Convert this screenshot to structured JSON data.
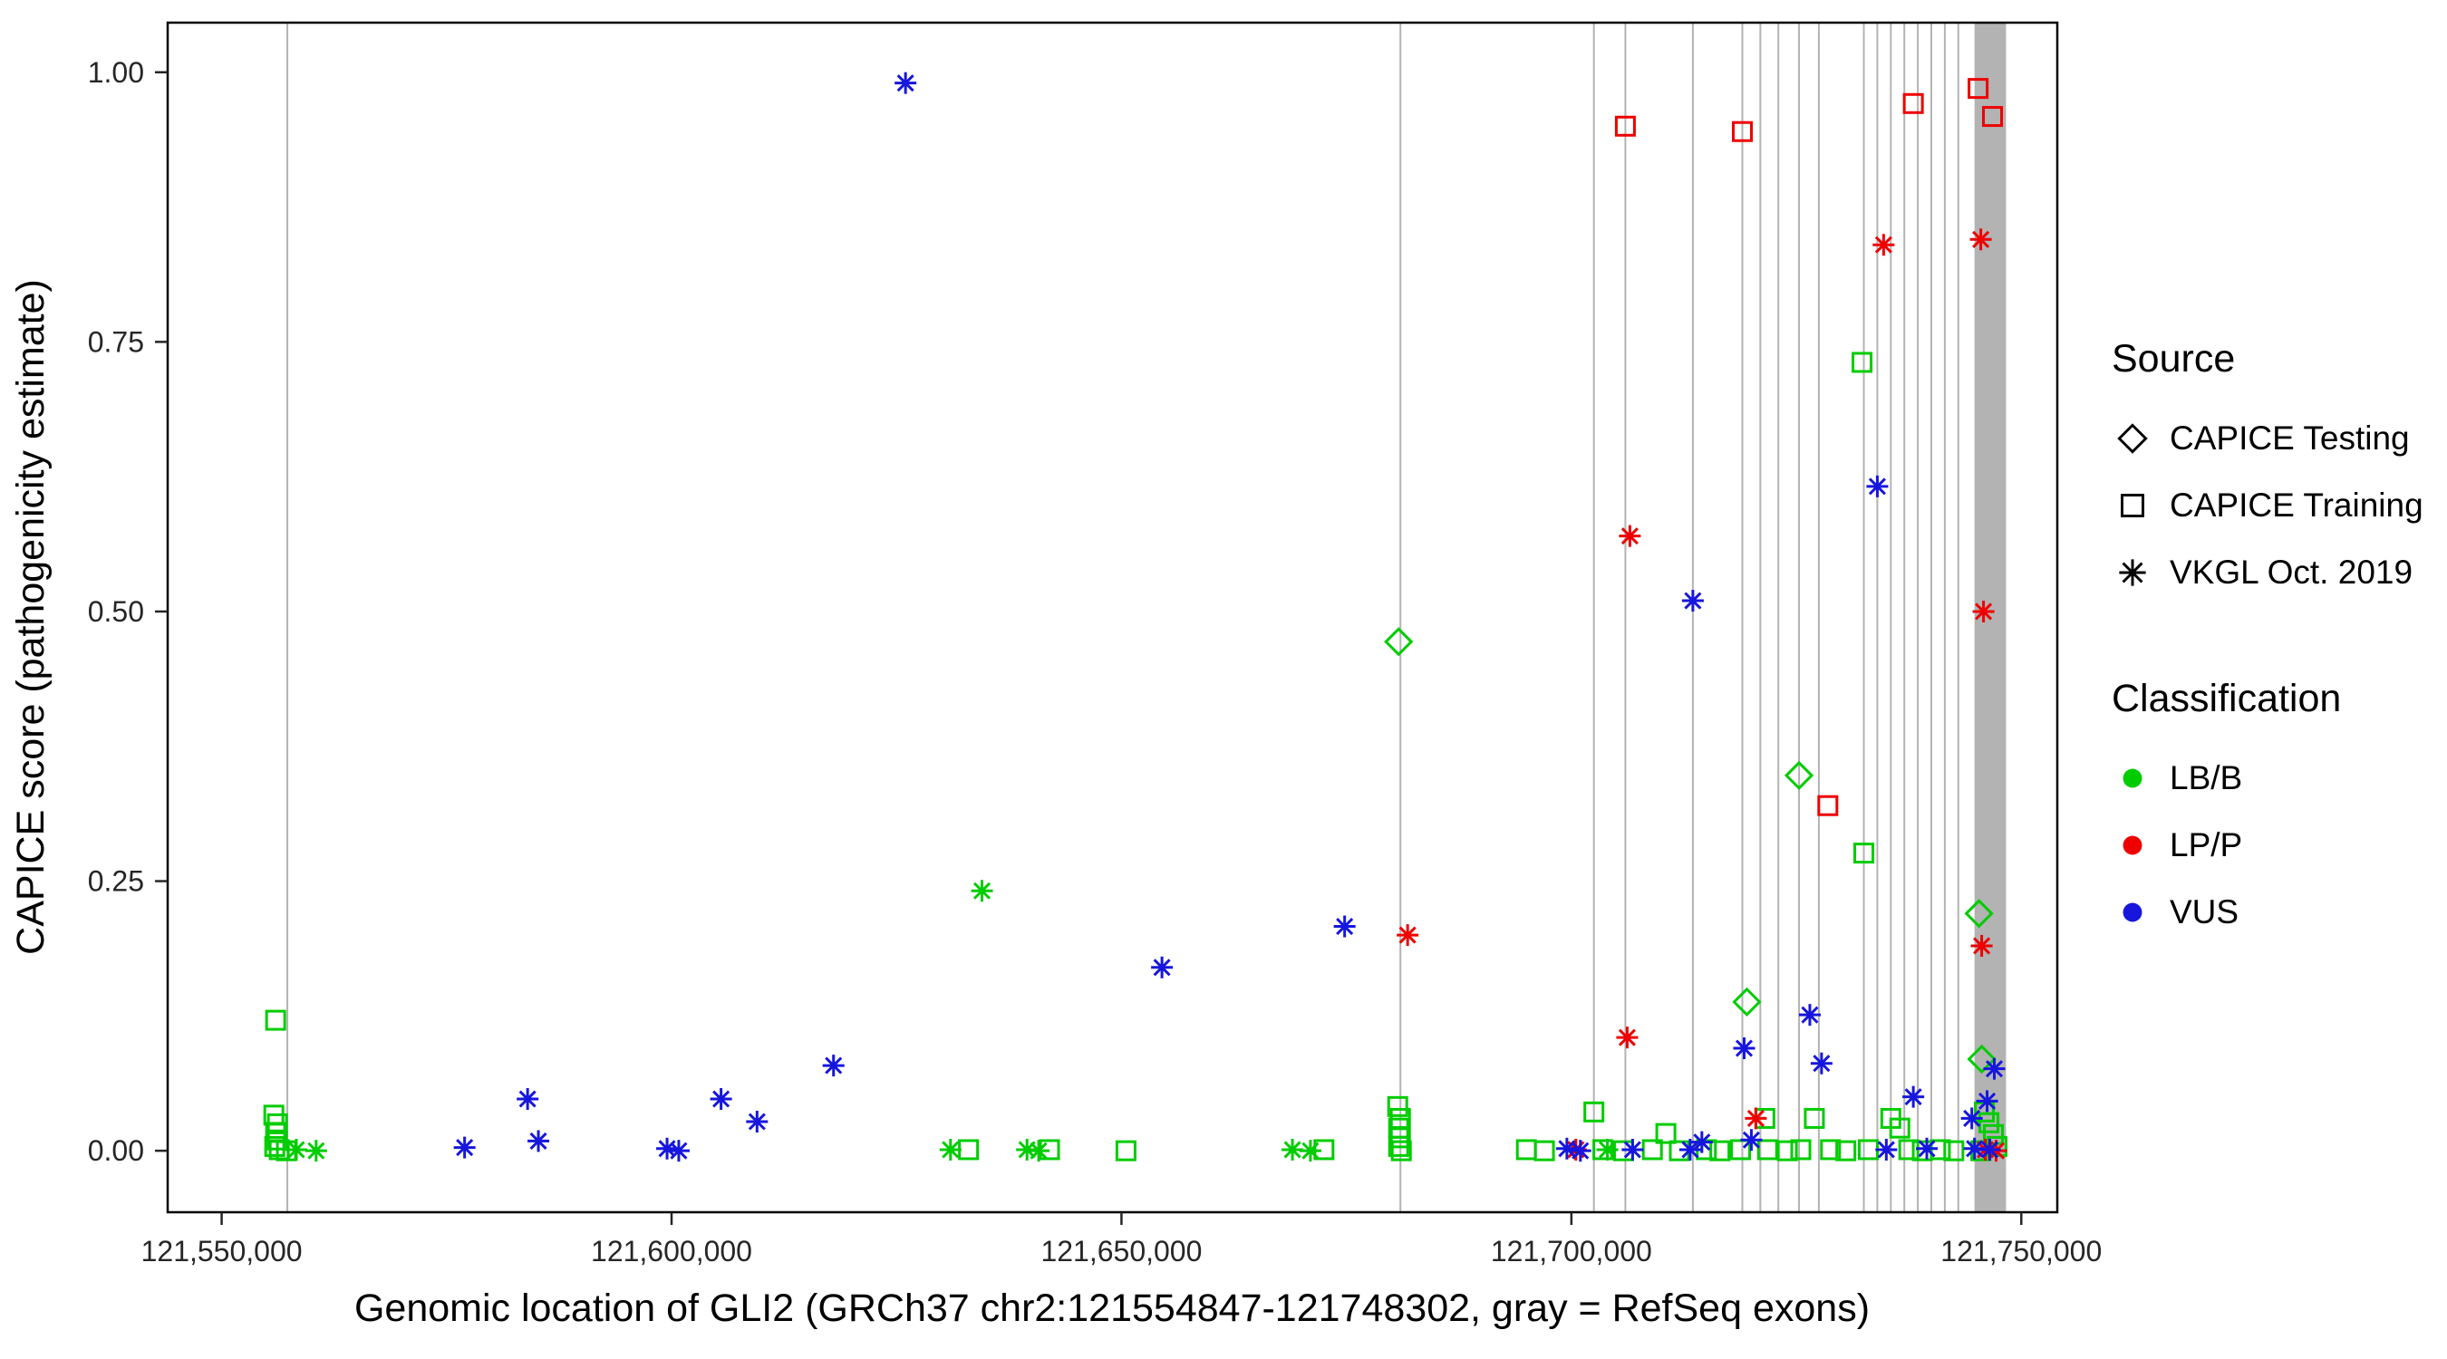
{
  "legend": {
    "source": {
      "title": "Source",
      "items": [
        {
          "label": "CAPICE Testing",
          "shape": "diamond"
        },
        {
          "label": "CAPICE Training",
          "shape": "square"
        },
        {
          "label": "VKGL Oct. 2019",
          "shape": "asterisk"
        }
      ]
    },
    "classification": {
      "title": "Classification",
      "items": [
        {
          "label": "LB/B",
          "color": "#00cc00"
        },
        {
          "label": "LP/P",
          "color": "#ee0000"
        },
        {
          "label": "VUS",
          "color": "#1616dd"
        }
      ]
    }
  },
  "chart_data": {
    "type": "scatter",
    "title": "",
    "xlabel": "Genomic location of GLI2 (GRCh37 chr2:121554847-121748302, gray = RefSeq exons)",
    "ylabel": "CAPICE score (pathogenicity estimate)",
    "xlim": [
      121544000,
      121754000
    ],
    "ylim": [
      -0.057,
      1.046
    ],
    "grid": "off",
    "legend_position": "right",
    "x_ticks": [
      {
        "value": 121550000,
        "label": "121,550,000"
      },
      {
        "value": 121600000,
        "label": "121,600,000"
      },
      {
        "value": 121650000,
        "label": "121,650,000"
      },
      {
        "value": 121700000,
        "label": "121,700,000"
      },
      {
        "value": 121750000,
        "label": "121,750,000"
      }
    ],
    "y_ticks": [
      {
        "value": 0,
        "label": "0.00"
      },
      {
        "value": 0.25,
        "label": "0.25"
      },
      {
        "value": 0.5,
        "label": "0.50"
      },
      {
        "value": 0.75,
        "label": "0.75"
      },
      {
        "value": 1,
        "label": "1.00"
      }
    ],
    "exons": {
      "color": "#b3b3b3",
      "lines": [
        121557300,
        121681000,
        121702500,
        121706000,
        121713500,
        121719000,
        121721000,
        121723000,
        121725300,
        121727500,
        121732500,
        121734000,
        121735500,
        121737000,
        121738500,
        121740000,
        121741500,
        121743000
      ],
      "band": [
        121744800,
        121748302
      ]
    },
    "colors": {
      "LB/B": "#00cc00",
      "LP/P": "#ee0000",
      "VUS": "#1616dd"
    },
    "series": [
      {
        "source": "CAPICE Testing",
        "classification": "LB/B",
        "shape": "diamond",
        "points": [
          [
            121680800,
            0.472
          ],
          [
            121719500,
            0.138
          ],
          [
            121725300,
            0.348
          ],
          [
            121745300,
            0.22
          ],
          [
            121745600,
            0.085
          ]
        ]
      },
      {
        "source": "CAPICE Training",
        "classification": "LB/B",
        "shape": "square",
        "points": [
          [
            121556000,
            0.121
          ],
          [
            121555800,
            0.033
          ],
          [
            121556200,
            0.025
          ],
          [
            121556000,
            0.017
          ],
          [
            121556200,
            0.01
          ],
          [
            121555900,
            0.004
          ],
          [
            121556400,
            0.001
          ],
          [
            121557200,
            0
          ],
          [
            121633000,
            0.001
          ],
          [
            121642000,
            0.001
          ],
          [
            121650500,
            0
          ],
          [
            121672500,
            0.001
          ],
          [
            121680700,
            0.041
          ],
          [
            121681000,
            0.03
          ],
          [
            121680800,
            0.021
          ],
          [
            121681000,
            0.012
          ],
          [
            121680800,
            0.004
          ],
          [
            121681100,
            0
          ],
          [
            121695000,
            0.001
          ],
          [
            121697000,
            0
          ],
          [
            121702500,
            0.036
          ],
          [
            121703500,
            0.001
          ],
          [
            121705800,
            0
          ],
          [
            121709000,
            0.001
          ],
          [
            121710500,
            0.016
          ],
          [
            121712000,
            0
          ],
          [
            121715000,
            0.001
          ],
          [
            121716500,
            0
          ],
          [
            121718800,
            0.001
          ],
          [
            121721500,
            0.03
          ],
          [
            121721800,
            0.001
          ],
          [
            121724000,
            0
          ],
          [
            121725500,
            0.001
          ],
          [
            121727000,
            0.03
          ],
          [
            121728800,
            0.001
          ],
          [
            121730500,
            0
          ],
          [
            121732300,
            0.731
          ],
          [
            121732500,
            0.276
          ],
          [
            121733000,
            0.001
          ],
          [
            121735500,
            0.03
          ],
          [
            121736500,
            0.021
          ],
          [
            121737500,
            0.001
          ],
          [
            121739000,
            0
          ],
          [
            121741000,
            0.001
          ],
          [
            121742500,
            0
          ],
          [
            121745900,
            0.036
          ],
          [
            121746400,
            0.026
          ],
          [
            121746900,
            0.015
          ],
          [
            121747300,
            0.004
          ],
          [
            121745500,
            0
          ]
        ]
      },
      {
        "source": "CAPICE Training",
        "classification": "LP/P",
        "shape": "square",
        "points": [
          [
            121706000,
            0.95
          ],
          [
            121719000,
            0.945
          ],
          [
            121728500,
            0.32
          ],
          [
            121738000,
            0.971
          ],
          [
            121745200,
            0.985
          ],
          [
            121746800,
            0.959
          ]
        ]
      },
      {
        "source": "VKGL Oct. 2019",
        "classification": "LB/B",
        "shape": "asterisk",
        "points": [
          [
            121558300,
            0.001
          ],
          [
            121560500,
            0
          ],
          [
            121631000,
            0.001
          ],
          [
            121634500,
            0.241
          ],
          [
            121639500,
            0.001
          ],
          [
            121640800,
            0
          ],
          [
            121669000,
            0.001
          ],
          [
            121671000,
            0
          ],
          [
            121704000,
            0.001
          ]
        ]
      },
      {
        "source": "VKGL Oct. 2019",
        "classification": "LP/P",
        "shape": "asterisk",
        "points": [
          [
            121681800,
            0.2
          ],
          [
            121700500,
            0.001
          ],
          [
            121706500,
            0.57
          ],
          [
            121706200,
            0.105
          ],
          [
            121720500,
            0.03
          ],
          [
            121734700,
            0.84
          ],
          [
            121745500,
            0.845
          ],
          [
            121745800,
            0.5
          ],
          [
            121745600,
            0.19
          ],
          [
            121746000,
            0.001
          ],
          [
            121747200,
            0
          ]
        ]
      },
      {
        "source": "VKGL Oct. 2019",
        "classification": "VUS",
        "shape": "asterisk",
        "points": [
          [
            121577000,
            0.003
          ],
          [
            121584000,
            0.048
          ],
          [
            121585200,
            0.009
          ],
          [
            121599500,
            0.002
          ],
          [
            121600800,
            0
          ],
          [
            121605500,
            0.048
          ],
          [
            121609500,
            0.027
          ],
          [
            121618000,
            0.079
          ],
          [
            121626000,
            0.99
          ],
          [
            121654500,
            0.17
          ],
          [
            121674800,
            0.208
          ],
          [
            121699500,
            0.002
          ],
          [
            121701000,
            0
          ],
          [
            121706800,
            0.001
          ],
          [
            121713500,
            0.51
          ],
          [
            121714500,
            0.008
          ],
          [
            121713200,
            0.001
          ],
          [
            121719200,
            0.095
          ],
          [
            121720000,
            0.01
          ],
          [
            121726500,
            0.126
          ],
          [
            121727800,
            0.081
          ],
          [
            121734000,
            0.616
          ],
          [
            121735000,
            0.001
          ],
          [
            121738000,
            0.05
          ],
          [
            121739500,
            0.002
          ],
          [
            121744500,
            0.03
          ],
          [
            121746200,
            0.046
          ],
          [
            121747000,
            0.076
          ],
          [
            121744800,
            0.002
          ],
          [
            121746500,
            0.001
          ]
        ]
      }
    ]
  }
}
